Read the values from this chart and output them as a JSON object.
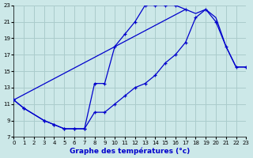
{
  "title": "Graphe des températures (°c)",
  "bg": "#cce8e8",
  "grid_color": "#aacccc",
  "lc": "#0000cc",
  "xlim": [
    0,
    23
  ],
  "ylim": [
    7,
    23
  ],
  "xticks": [
    0,
    1,
    2,
    3,
    4,
    5,
    6,
    7,
    8,
    9,
    10,
    11,
    12,
    13,
    14,
    15,
    16,
    17,
    18,
    19,
    20,
    21,
    22,
    23
  ],
  "yticks": [
    7,
    9,
    11,
    13,
    15,
    17,
    19,
    21,
    23
  ],
  "curve1_x": [
    0,
    1,
    3,
    4,
    5,
    6,
    7,
    8,
    9,
    10,
    11,
    12,
    13,
    14,
    15,
    16,
    17
  ],
  "curve1_y": [
    11.5,
    10.5,
    9.0,
    8.5,
    8.0,
    8.0,
    8.0,
    13.5,
    13.5,
    18.0,
    19.5,
    21.0,
    23.0,
    23.0,
    23.0,
    23.0,
    22.5
  ],
  "curve2_x": [
    0,
    1,
    3,
    4,
    5,
    6,
    7,
    8,
    9,
    10,
    11,
    12,
    13,
    14,
    15,
    16,
    17,
    18,
    19,
    20,
    21,
    22,
    23
  ],
  "curve2_y": [
    11.5,
    10.5,
    9.0,
    8.5,
    8.0,
    8.0,
    8.0,
    10.0,
    10.0,
    11.0,
    12.0,
    13.0,
    13.5,
    14.5,
    16.0,
    17.0,
    18.5,
    21.5,
    22.5,
    21.0,
    18.0,
    15.5,
    15.5
  ],
  "curve3_x": [
    0,
    17,
    18,
    19,
    20,
    21,
    22,
    23
  ],
  "curve3_y": [
    11.5,
    22.5,
    22.0,
    22.5,
    21.5,
    18.0,
    15.5,
    15.5
  ]
}
